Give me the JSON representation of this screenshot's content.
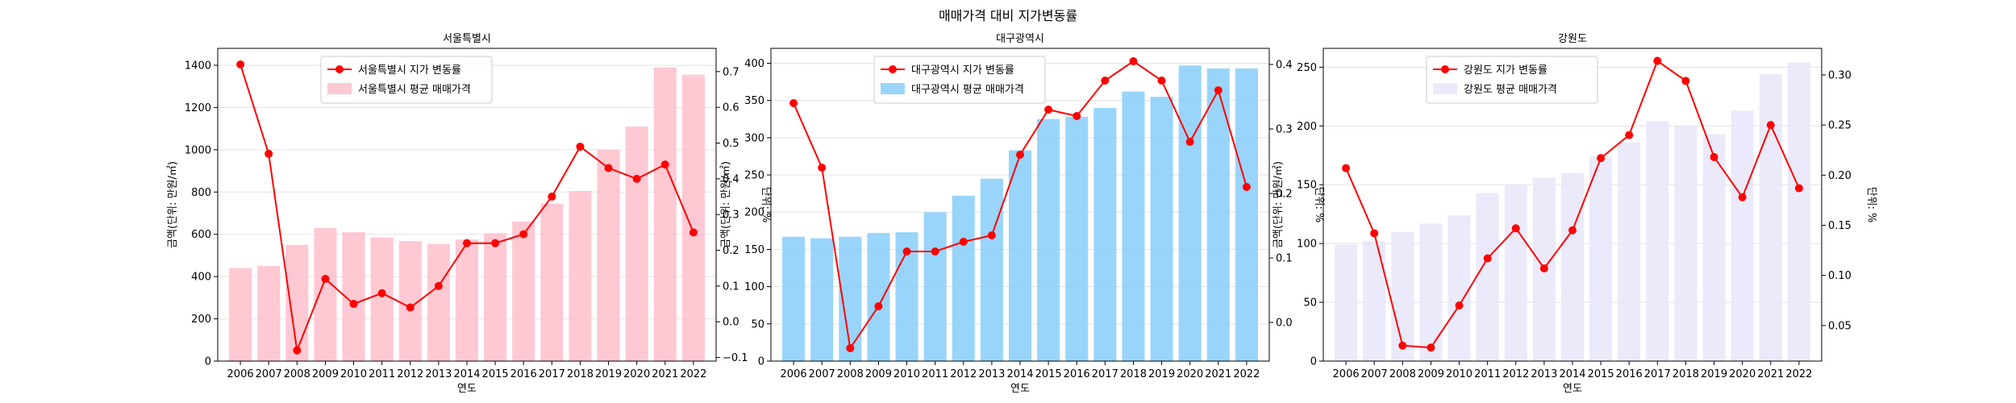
{
  "figure": {
    "title": "매매가격 대비 지가변동률"
  },
  "chart_data": [
    {
      "type": "bar+line",
      "title": "서울특별시",
      "xlabel": "연도",
      "ylabel_left": "금액(단위: 만원/㎡)",
      "ylabel_right": "단위: %",
      "categories": [
        "2006",
        "2007",
        "2008",
        "2009",
        "2010",
        "2011",
        "2012",
        "2013",
        "2014",
        "2015",
        "2016",
        "2017",
        "2018",
        "2019",
        "2020",
        "2021",
        "2022"
      ],
      "bar_series": {
        "name": "서울특별시 평균 매매가격",
        "color": "#ffc0cb",
        "values": [
          440,
          450,
          550,
          630,
          610,
          585,
          568,
          555,
          575,
          605,
          660,
          745,
          805,
          1000,
          1110,
          1390,
          1355
        ]
      },
      "line_series": {
        "name": "서울특별시 지가 변동률",
        "color": "#ff0000",
        "values": [
          0.72,
          0.47,
          -0.08,
          0.12,
          0.05,
          0.08,
          0.04,
          0.1,
          0.22,
          0.22,
          0.245,
          0.35,
          0.49,
          0.43,
          0.4,
          0.44,
          0.25
        ]
      },
      "ylim_left": [
        0,
        1480
      ],
      "yticks_left": [
        0,
        200,
        400,
        600,
        800,
        1000,
        1200,
        1400
      ],
      "ylim_right": [
        -0.11,
        0.765
      ],
      "yticks_right": [
        -0.1,
        0.0,
        0.1,
        0.2,
        0.3,
        0.4,
        0.5,
        0.6,
        0.7
      ],
      "ytick_labels_right": [
        "−0.1",
        "0.0",
        "0.1",
        "0.2",
        "0.3",
        "0.4",
        "0.5",
        "0.6",
        "0.7"
      ],
      "legend": "top-left",
      "grid": true
    },
    {
      "type": "bar+line",
      "title": "대구광역시",
      "xlabel": "연도",
      "ylabel_left": "금액(단위: 만원/㎡)",
      "ylabel_right": "단위: %",
      "categories": [
        "2006",
        "2007",
        "2008",
        "2009",
        "2010",
        "2011",
        "2012",
        "2013",
        "2014",
        "2015",
        "2016",
        "2017",
        "2018",
        "2019",
        "2020",
        "2021",
        "2022"
      ],
      "bar_series": {
        "name": "대구광역시 평균 매매가격",
        "color": "#87cefa",
        "values": [
          167,
          165,
          167,
          172,
          173,
          200,
          222,
          245,
          283,
          325,
          328,
          340,
          362,
          355,
          397,
          393,
          393
        ]
      },
      "line_series": {
        "name": "대구광역시 지가 변동률",
        "color": "#ff0000",
        "values": [
          0.34,
          0.24,
          -0.04,
          0.025,
          0.11,
          0.11,
          0.125,
          0.135,
          0.26,
          0.33,
          0.32,
          0.375,
          0.405,
          0.375,
          0.28,
          0.36,
          0.21
        ]
      },
      "ylim_left": [
        0,
        420
      ],
      "yticks_left": [
        0,
        50,
        100,
        150,
        200,
        250,
        300,
        350,
        400
      ],
      "ylim_right": [
        -0.06,
        0.425
      ],
      "yticks_right": [
        0.0,
        0.1,
        0.2,
        0.3,
        0.4
      ],
      "ytick_labels_right": [
        "0.0",
        "0.1",
        "0.2",
        "0.3",
        "0.4"
      ],
      "legend": "top-left",
      "grid": true
    },
    {
      "type": "bar+line",
      "title": "강원도",
      "xlabel": "연도",
      "ylabel_left": "금액(단위: 만원/㎡)",
      "ylabel_right": "단위: %",
      "categories": [
        "2006",
        "2007",
        "2008",
        "2009",
        "2010",
        "2011",
        "2012",
        "2013",
        "2014",
        "2015",
        "2016",
        "2017",
        "2018",
        "2019",
        "2020",
        "2021",
        "2022"
      ],
      "bar_series": {
        "name": "강원도 평균 매매가격",
        "color": "#e6e6fa",
        "values": [
          99,
          102,
          110,
          117,
          124,
          143,
          150,
          156,
          160,
          174,
          186,
          204,
          200,
          193,
          213,
          244,
          254
        ]
      },
      "line_series": {
        "name": "강원도 지가 변동률",
        "color": "#ff0000",
        "values": [
          0.207,
          0.142,
          0.03,
          0.028,
          0.07,
          0.117,
          0.147,
          0.107,
          0.145,
          0.217,
          0.24,
          0.314,
          0.294,
          0.218,
          0.178,
          0.25,
          0.187
        ]
      },
      "ylim_left": [
        0,
        266
      ],
      "yticks_left": [
        0,
        50,
        100,
        150,
        200,
        250
      ],
      "ylim_right": [
        0.0145,
        0.3265
      ],
      "yticks_right": [
        0.05,
        0.1,
        0.15,
        0.2,
        0.25,
        0.3
      ],
      "ytick_labels_right": [
        "0.05",
        "0.10",
        "0.15",
        "0.20",
        "0.25",
        "0.30"
      ],
      "legend": "top-left",
      "grid": true
    }
  ]
}
